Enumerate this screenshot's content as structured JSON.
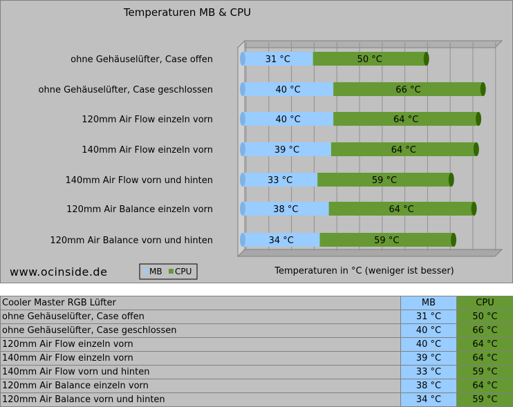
{
  "colors": {
    "mb": "#99ccff",
    "cpu": "#669933",
    "cpu_dark": "#336600",
    "background": "#c0c0c0"
  },
  "chart_data": {
    "type": "bar",
    "orientation": "horizontal",
    "stacked": true,
    "title": "Temperaturen MB & CPU",
    "xlabel": "Temperaturen in °C (weniger ist besser)",
    "watermark": "www.ocinside.de",
    "legend": [
      "MB",
      "CPU"
    ],
    "legend_position": "bottom-left",
    "unit": "°C",
    "categories": [
      "ohne Gehäuselüfter, Case offen",
      "ohne Gehäuselüfter, Case geschlossen",
      "120mm Air Flow einzeln vorn",
      "140mm Air Flow einzeln vorn",
      "140mm Air Flow vorn und hinten",
      "120mm Air Balance einzeln vorn",
      "120mm Air Balance vorn und hinten"
    ],
    "series": [
      {
        "name": "MB",
        "values": [
          31,
          40,
          40,
          39,
          33,
          38,
          34
        ]
      },
      {
        "name": "CPU",
        "values": [
          50,
          66,
          64,
          64,
          59,
          64,
          59
        ]
      }
    ]
  },
  "table": {
    "header": {
      "label": "Cooler Master RGB Lüfter",
      "mb": "MB",
      "cpu": "CPU"
    },
    "rows": [
      {
        "label": "ohne Gehäuselüfter, Case offen",
        "mb": "31 °C",
        "cpu": "50 °C"
      },
      {
        "label": "ohne Gehäuselüfter, Case geschlossen",
        "mb": "40 °C",
        "cpu": "66 °C"
      },
      {
        "label": "120mm Air Flow einzeln vorn",
        "mb": "40 °C",
        "cpu": "64 °C"
      },
      {
        "label": "140mm Air Flow einzeln vorn",
        "mb": "39 °C",
        "cpu": "64 °C"
      },
      {
        "label": "140mm Air Flow vorn und hinten",
        "mb": "33 °C",
        "cpu": "59 °C"
      },
      {
        "label": "120mm Air Balance einzeln vorn",
        "mb": "38 °C",
        "cpu": "64 °C"
      },
      {
        "label": "120mm Air Balance vorn und hinten",
        "mb": "34 °C",
        "cpu": "59 °C"
      }
    ]
  }
}
